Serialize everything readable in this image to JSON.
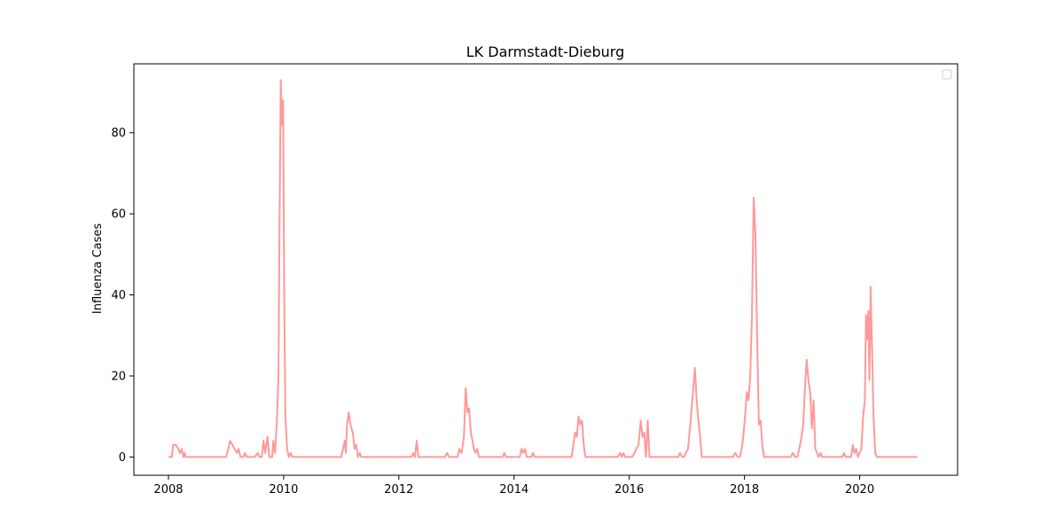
{
  "chart_data": {
    "type": "line",
    "title": "LK Darmstadt-Dieburg",
    "xlabel": "",
    "ylabel": "Influenza Cases",
    "xlim": [
      2007.4,
      2021.7
    ],
    "ylim": [
      -4.5,
      97
    ],
    "x_ticks": [
      "2008",
      "2010",
      "2012",
      "2014",
      "2016",
      "2018",
      "2020"
    ],
    "y_ticks": [
      "0",
      "20",
      "40",
      "60",
      "80"
    ],
    "grid": false,
    "legend": {
      "placement": "top-right",
      "entries": []
    },
    "series": [
      {
        "color": "#ff9999",
        "points": [
          [
            2008.0,
            0
          ],
          [
            2008.06,
            0
          ],
          [
            2008.08,
            3
          ],
          [
            2008.13,
            3
          ],
          [
            2008.17,
            2
          ],
          [
            2008.2,
            1
          ],
          [
            2008.23,
            2
          ],
          [
            2008.26,
            0
          ],
          [
            2008.28,
            1
          ],
          [
            2008.3,
            0
          ],
          [
            2009.0,
            0
          ],
          [
            2009.04,
            2
          ],
          [
            2009.07,
            4
          ],
          [
            2009.11,
            3
          ],
          [
            2009.15,
            2
          ],
          [
            2009.19,
            1
          ],
          [
            2009.22,
            2
          ],
          [
            2009.25,
            0
          ],
          [
            2009.3,
            0
          ],
          [
            2009.33,
            1
          ],
          [
            2009.36,
            0
          ],
          [
            2009.5,
            0
          ],
          [
            2009.55,
            1
          ],
          [
            2009.58,
            0
          ],
          [
            2009.62,
            0
          ],
          [
            2009.65,
            4
          ],
          [
            2009.68,
            1
          ],
          [
            2009.72,
            5
          ],
          [
            2009.75,
            0
          ],
          [
            2009.8,
            0
          ],
          [
            2009.82,
            4
          ],
          [
            2009.85,
            1
          ],
          [
            2009.88,
            8
          ],
          [
            2009.91,
            20
          ],
          [
            2009.93,
            60
          ],
          [
            2009.95,
            93
          ],
          [
            2009.97,
            82
          ],
          [
            2009.99,
            88
          ],
          [
            2010.01,
            40
          ],
          [
            2010.03,
            10
          ],
          [
            2010.06,
            2
          ],
          [
            2010.09,
            0
          ],
          [
            2010.12,
            1
          ],
          [
            2010.15,
            0
          ],
          [
            2011.0,
            0
          ],
          [
            2011.03,
            2
          ],
          [
            2011.06,
            4
          ],
          [
            2011.08,
            1
          ],
          [
            2011.1,
            8
          ],
          [
            2011.13,
            11
          ],
          [
            2011.16,
            8
          ],
          [
            2011.2,
            6
          ],
          [
            2011.23,
            2
          ],
          [
            2011.26,
            3
          ],
          [
            2011.29,
            0
          ],
          [
            2011.32,
            1
          ],
          [
            2011.35,
            0
          ],
          [
            2012.22,
            0
          ],
          [
            2012.25,
            1
          ],
          [
            2012.28,
            0
          ],
          [
            2012.31,
            4
          ],
          [
            2012.34,
            0
          ],
          [
            2012.8,
            0
          ],
          [
            2012.84,
            1
          ],
          [
            2012.87,
            0
          ],
          [
            2013.02,
            0
          ],
          [
            2013.05,
            2
          ],
          [
            2013.09,
            1
          ],
          [
            2013.13,
            5
          ],
          [
            2013.16,
            17
          ],
          [
            2013.19,
            11
          ],
          [
            2013.22,
            12
          ],
          [
            2013.25,
            6
          ],
          [
            2013.28,
            4
          ],
          [
            2013.3,
            2
          ],
          [
            2013.33,
            1
          ],
          [
            2013.36,
            2
          ],
          [
            2013.39,
            0
          ],
          [
            2013.8,
            0
          ],
          [
            2013.83,
            1
          ],
          [
            2013.86,
            0
          ],
          [
            2014.1,
            0
          ],
          [
            2014.13,
            2
          ],
          [
            2014.16,
            1
          ],
          [
            2014.19,
            2
          ],
          [
            2014.22,
            0
          ],
          [
            2014.3,
            0
          ],
          [
            2014.33,
            1
          ],
          [
            2014.36,
            0
          ],
          [
            2015.0,
            0
          ],
          [
            2015.03,
            3
          ],
          [
            2015.06,
            6
          ],
          [
            2015.09,
            5
          ],
          [
            2015.12,
            10
          ],
          [
            2015.15,
            8
          ],
          [
            2015.18,
            9
          ],
          [
            2015.21,
            3
          ],
          [
            2015.24,
            0
          ],
          [
            2015.8,
            0
          ],
          [
            2015.84,
            1
          ],
          [
            2015.87,
            0
          ],
          [
            2015.9,
            1
          ],
          [
            2015.93,
            0
          ],
          [
            2016.05,
            0
          ],
          [
            2016.09,
            1
          ],
          [
            2016.12,
            2
          ],
          [
            2016.16,
            3
          ],
          [
            2016.2,
            9
          ],
          [
            2016.23,
            5
          ],
          [
            2016.26,
            6
          ],
          [
            2016.29,
            0
          ],
          [
            2016.32,
            9
          ],
          [
            2016.35,
            0
          ],
          [
            2016.38,
            0
          ],
          [
            2016.85,
            0
          ],
          [
            2016.88,
            1
          ],
          [
            2016.92,
            0
          ],
          [
            2016.95,
            0
          ],
          [
            2016.98,
            1
          ],
          [
            2017.02,
            2
          ],
          [
            2017.06,
            8
          ],
          [
            2017.1,
            15
          ],
          [
            2017.14,
            22
          ],
          [
            2017.17,
            14
          ],
          [
            2017.2,
            9
          ],
          [
            2017.23,
            5
          ],
          [
            2017.26,
            0
          ],
          [
            2017.3,
            0
          ],
          [
            2017.8,
            0
          ],
          [
            2017.84,
            1
          ],
          [
            2017.88,
            0
          ],
          [
            2017.92,
            0
          ],
          [
            2017.95,
            2
          ],
          [
            2017.98,
            5
          ],
          [
            2018.01,
            10
          ],
          [
            2018.04,
            16
          ],
          [
            2018.07,
            14
          ],
          [
            2018.1,
            20
          ],
          [
            2018.13,
            35
          ],
          [
            2018.16,
            64
          ],
          [
            2018.19,
            55
          ],
          [
            2018.22,
            30
          ],
          [
            2018.25,
            8
          ],
          [
            2018.28,
            9
          ],
          [
            2018.31,
            3
          ],
          [
            2018.34,
            0
          ],
          [
            2018.8,
            0
          ],
          [
            2018.84,
            1
          ],
          [
            2018.88,
            0
          ],
          [
            2018.92,
            0
          ],
          [
            2018.95,
            2
          ],
          [
            2018.98,
            4
          ],
          [
            2019.02,
            8
          ],
          [
            2019.05,
            17
          ],
          [
            2019.08,
            24
          ],
          [
            2019.11,
            19
          ],
          [
            2019.14,
            16
          ],
          [
            2019.17,
            7
          ],
          [
            2019.2,
            14
          ],
          [
            2019.23,
            2
          ],
          [
            2019.26,
            1
          ],
          [
            2019.29,
            0
          ],
          [
            2019.32,
            1
          ],
          [
            2019.35,
            0
          ],
          [
            2019.7,
            0
          ],
          [
            2019.73,
            1
          ],
          [
            2019.76,
            0
          ],
          [
            2019.85,
            0
          ],
          [
            2019.88,
            3
          ],
          [
            2019.91,
            1
          ],
          [
            2019.94,
            2
          ],
          [
            2019.97,
            0
          ],
          [
            2020.0,
            1
          ],
          [
            2020.03,
            2
          ],
          [
            2020.06,
            10
          ],
          [
            2020.09,
            14
          ],
          [
            2020.11,
            35
          ],
          [
            2020.13,
            29
          ],
          [
            2020.15,
            36
          ],
          [
            2020.17,
            19
          ],
          [
            2020.19,
            42
          ],
          [
            2020.21,
            30
          ],
          [
            2020.24,
            10
          ],
          [
            2020.27,
            1
          ],
          [
            2020.3,
            0
          ],
          [
            2020.33,
            0
          ],
          [
            2021.0,
            0
          ]
        ]
      }
    ]
  }
}
